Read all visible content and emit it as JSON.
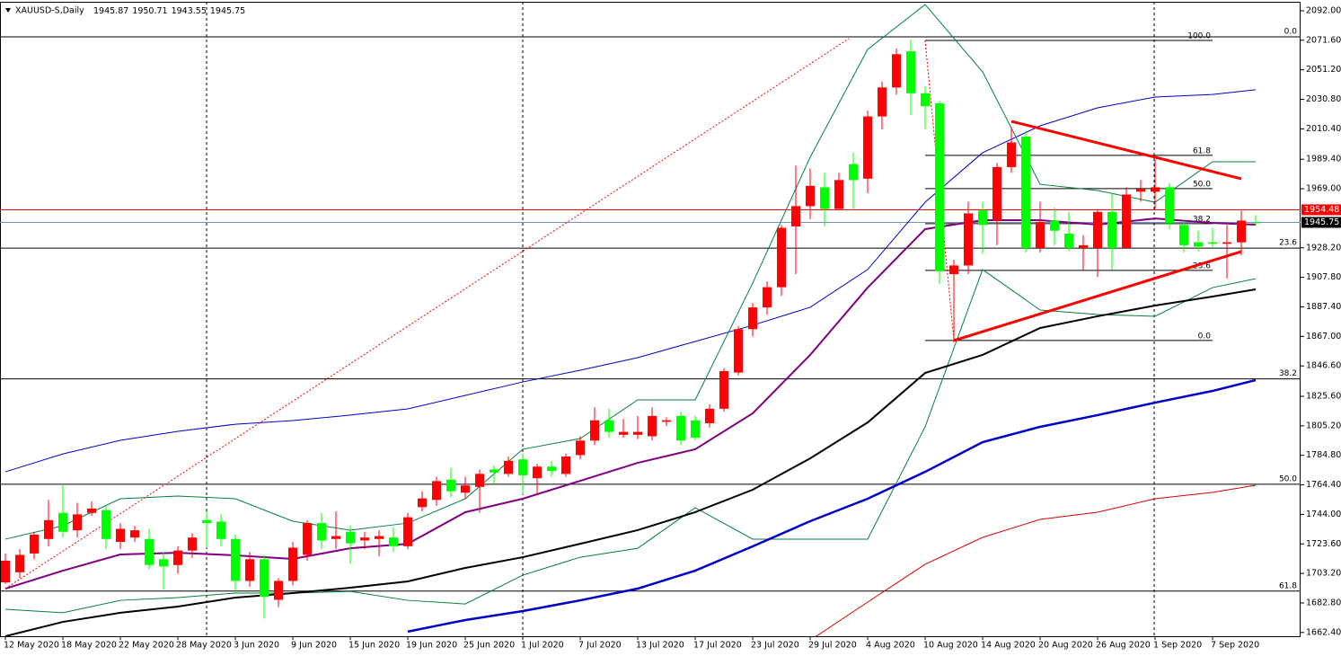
{
  "chart_data": {
    "type": "candlestick",
    "title": "XAUUSD-S,Daily",
    "categories": [
      "12 May 2020",
      null,
      null,
      null,
      "18 May 2020",
      null,
      null,
      null,
      "22 May 2020",
      null,
      null,
      null,
      "28 May 2020",
      null,
      null,
      null,
      "3 Jun 2020",
      null,
      null,
      null,
      "9 Jun 2020",
      null,
      null,
      null,
      "15 Jun 2020",
      null,
      null,
      null,
      "19 Jun 2020",
      null,
      null,
      null,
      "25 Jun 2020",
      null,
      null,
      null,
      "1 Jul 2020",
      null,
      null,
      null,
      "7 Jul 2020",
      null,
      null,
      null,
      "13 Jul 2020",
      null,
      null,
      null,
      "17 Jul 2020",
      null,
      null,
      null,
      "23 Jul 2020",
      null,
      null,
      null,
      "29 Jul 2020",
      null,
      null,
      null,
      "4 Aug 2020",
      null,
      null,
      null,
      "10 Aug 2020",
      null,
      null,
      null,
      "14 Aug 2020",
      null,
      null,
      null,
      "20 Aug 2020",
      null,
      null,
      null,
      "26 Aug 2020",
      null,
      null,
      null,
      "1 Sep 2020",
      null,
      null,
      null,
      "7 Sep 2020",
      null,
      null,
      null
    ],
    "open": [
      1697,
      1704,
      1717,
      1727,
      1745,
      1733,
      1745,
      1747,
      1725,
      1728,
      1727,
      1713,
      1709,
      1719,
      1740,
      1739,
      1727,
      1698,
      1713,
      1685,
      1698,
      1716,
      1738,
      1727,
      1732,
      1726,
      1727,
      1728,
      1722,
      1749,
      1754,
      1768,
      1759,
      1763,
      1775,
      1772,
      1782,
      1769,
      1777,
      1772,
      1785,
      1795,
      1809,
      1799,
      1799,
      1798,
      1808,
      1812,
      1809,
      1807,
      1817,
      1842,
      1872,
      1887,
      1901,
      1943,
      1957,
      1970,
      1955,
      1986,
      1976,
      2019,
      2039,
      2064,
      2035,
      2028,
      1910,
      1916,
      1954,
      1947,
      1984,
      2005,
      1928,
      1947,
      1938,
      1928,
      1928,
      1953,
      1928,
      1967,
      1967,
      1970,
      1944,
      1932,
      1932,
      1931,
      1932,
      1945.87
    ],
    "high": [
      1717,
      1720,
      1732,
      1754,
      1765,
      1752,
      1753,
      1750,
      1738,
      1736,
      1734,
      1718,
      1722,
      1731,
      1746,
      1744,
      1730,
      1718,
      1716,
      1700,
      1725,
      1740,
      1745,
      1746,
      1736,
      1732,
      1733,
      1735,
      1745,
      1760,
      1770,
      1776,
      1770,
      1775,
      1778,
      1784,
      1786,
      1779,
      1781,
      1786,
      1798,
      1818,
      1817,
      1810,
      1812,
      1818,
      1811,
      1815,
      1812,
      1820,
      1845,
      1874,
      1890,
      1905,
      1944,
      1985,
      1983,
      1980,
      1980,
      1994,
      2023,
      2043,
      2066,
      2072,
      2040,
      2030,
      1920,
      1960,
      1960,
      1987,
      2012,
      2009,
      1960,
      1956,
      1953,
      1937,
      1955,
      1966,
      1970,
      1975,
      1989,
      1973,
      1947,
      1940,
      1942,
      1944,
      1954,
      1950.71
    ],
    "low": [
      1696,
      1700,
      1713,
      1722,
      1728,
      1728,
      1743,
      1720,
      1720,
      1725,
      1706,
      1692,
      1703,
      1714,
      1721,
      1722,
      1690,
      1694,
      1672,
      1680,
      1695,
      1712,
      1720,
      1720,
      1710,
      1720,
      1715,
      1718,
      1720,
      1746,
      1750,
      1756,
      1755,
      1745,
      1765,
      1770,
      1758,
      1758,
      1770,
      1770,
      1782,
      1792,
      1797,
      1797,
      1796,
      1795,
      1805,
      1792,
      1795,
      1804,
      1815,
      1840,
      1867,
      1882,
      1895,
      1910,
      1948,
      1943,
      1955,
      1955,
      1966,
      2010,
      2034,
      2020,
      2010,
      1903,
      1863,
      1910,
      1924,
      1930,
      1980,
      1925,
      1925,
      1930,
      1926,
      1913,
      1908,
      1913,
      1928,
      1960,
      1955,
      1941,
      1925,
      1926,
      1928,
      1907,
      1923,
      1943.55
    ],
    "close": [
      1712,
      1716,
      1730,
      1740,
      1732,
      1744,
      1748,
      1727,
      1734,
      1733,
      1709,
      1708,
      1719,
      1728,
      1738,
      1727,
      1698,
      1713,
      1687,
      1698,
      1721,
      1738,
      1726,
      1729,
      1724,
      1728,
      1729,
      1722,
      1742,
      1755,
      1767,
      1760,
      1764,
      1772,
      1773,
      1781,
      1771,
      1777,
      1774,
      1784,
      1795,
      1809,
      1801,
      1801,
      1801,
      1812,
      1809,
      1795,
      1797,
      1817,
      1843,
      1872,
      1887,
      1901,
      1942,
      1957,
      1971,
      1955,
      1975,
      1975,
      2019,
      2039,
      2062,
      2035,
      2026,
      1912,
      1916,
      1952,
      1944,
      1984,
      2001,
      1928,
      1946,
      1940,
      1928,
      1930,
      1953,
      1928,
      1965,
      1969,
      1970,
      1945,
      1930,
      1929,
      1931,
      1932,
      1947,
      1945.75
    ],
    "up_color": "#ff0000",
    "down_color": "#00ff00",
    "ylim": [
      1659.8,
      2098.2
    ],
    "yticks": [
      {
        "value": 2092,
        "label": "2092.00"
      },
      {
        "value": 2071.6,
        "label": "2071.60"
      },
      {
        "value": 2051.2,
        "label": "2051.20"
      },
      {
        "value": 2030.8,
        "label": "2030.80"
      },
      {
        "value": 2010.4,
        "label": "2010.40"
      },
      {
        "value": 1989.4,
        "label": "1989.40"
      },
      {
        "value": 1969,
        "label": "1969.00"
      },
      {
        "value": 1928.2,
        "label": "1928.20"
      },
      {
        "value": 1907.8,
        "label": "1907.80"
      },
      {
        "value": 1887.4,
        "label": "1887.40"
      },
      {
        "value": 1867,
        "label": "1867.00"
      },
      {
        "value": 1846.6,
        "label": "1846.60"
      },
      {
        "value": 1825.6,
        "label": "1825.60"
      },
      {
        "value": 1805.2,
        "label": "1805.20"
      },
      {
        "value": 1784.8,
        "label": "1784.80"
      },
      {
        "value": 1764.4,
        "label": "1764.40"
      },
      {
        "value": 1744,
        "label": "1744.00"
      },
      {
        "value": 1723.6,
        "label": "1723.60"
      },
      {
        "value": 1703.2,
        "label": "1703.20"
      },
      {
        "value": 1682.8,
        "label": "1682.80"
      },
      {
        "value": 1662.4,
        "label": "1662.40"
      }
    ],
    "price_line": {
      "value": 1954.48,
      "label": "1954.48",
      "color": "#ff0000"
    },
    "bid": {
      "value": 1945.75,
      "label": "1945.75",
      "color": "#6f8fc8"
    },
    "indicators": [
      {
        "color": "#0000c8",
        "width": 1,
        "x": [
          0,
          4,
          8,
          12,
          16,
          20,
          24,
          28,
          32,
          36,
          40,
          44,
          48,
          52,
          56,
          60,
          64,
          68,
          72,
          76,
          80,
          84,
          87
        ],
        "values": [
          1773.4,
          1785.8,
          1795.2,
          1801.4,
          1806.3,
          1808.8,
          1812.6,
          1816.9,
          1826.2,
          1835.5,
          1843.6,
          1852.3,
          1863.5,
          1874.7,
          1887.1,
          1913.2,
          1959.7,
          1993.9,
          2012.5,
          2024.9,
          2032.4,
          2034.2,
          2037.4
        ]
      },
      {
        "color": "#008040",
        "width": 1,
        "x": [
          0,
          4,
          8,
          12,
          16,
          20,
          24,
          28,
          32,
          36,
          40,
          44,
          48,
          52,
          56,
          60,
          64,
          68,
          72,
          76,
          80,
          84,
          87
        ],
        "values": [
          1726.9,
          1736.2,
          1754.8,
          1756.7,
          1754.8,
          1739.3,
          1733.1,
          1738,
          1754.8,
          1789,
          1796.4,
          1823.1,
          1823.1,
          1903.8,
          1990.8,
          2065.3,
          2096.3,
          2049.8,
          1972.1,
          1967.8,
          1959.7,
          1987.7,
          1987.7
        ]
      },
      {
        "color": "#008040",
        "width": 1,
        "x": [
          0,
          4,
          8,
          12,
          16,
          20,
          24,
          28,
          32,
          36,
          40,
          44,
          48,
          52,
          56,
          60,
          64,
          68,
          72,
          76,
          80,
          84,
          87
        ],
        "values": [
          1678.4,
          1676,
          1684.6,
          1686.5,
          1689.6,
          1689.6,
          1690.8,
          1684.6,
          1682.1,
          1702,
          1714.4,
          1720.6,
          1748.6,
          1726.9,
          1726.9,
          1726.9,
          1804.5,
          1913.2,
          1885.2,
          1882.1,
          1880.9,
          1900.7,
          1906.9
        ]
      },
      {
        "color": "#800080",
        "width": 2,
        "x": [
          0,
          4,
          8,
          12,
          16,
          20,
          24,
          28,
          32,
          36,
          40,
          44,
          48,
          52,
          56,
          60,
          64,
          68,
          72,
          76,
          80,
          84,
          87
        ],
        "values": [
          1692.7,
          1705.1,
          1716.3,
          1717.5,
          1715.7,
          1713.2,
          1720.6,
          1723.7,
          1745.5,
          1754.8,
          1767.2,
          1779.6,
          1789,
          1813.8,
          1854.2,
          1900.7,
          1941.1,
          1947.3,
          1947.3,
          1944.2,
          1948.5,
          1945.4,
          1944.2
        ]
      },
      {
        "color": "#000000",
        "width": 2,
        "x": [
          0,
          4,
          8,
          12,
          16,
          20,
          24,
          28,
          32,
          36,
          40,
          44,
          48,
          52,
          56,
          60,
          64,
          68,
          72,
          76,
          80,
          84,
          87
        ],
        "values": [
          1659.8,
          1669.7,
          1676,
          1680.3,
          1686.5,
          1689.6,
          1693.3,
          1697.7,
          1707,
          1714.4,
          1723.7,
          1733.1,
          1745.5,
          1761,
          1782.7,
          1807.5,
          1841.7,
          1854.2,
          1872.8,
          1880.9,
          1888.3,
          1894.5,
          1899.5
        ]
      },
      {
        "color": "#0000c8",
        "width": 2.5,
        "x": [
          0,
          4,
          8,
          12,
          16,
          20,
          24,
          28,
          32,
          36,
          40,
          44,
          48,
          52,
          56,
          60,
          64,
          68,
          72,
          76,
          80,
          84,
          87
        ],
        "values": [
          null,
          null,
          null,
          null,
          null,
          null,
          null,
          1663,
          1671,
          1677.2,
          1684.6,
          1692.7,
          1705.1,
          1721.9,
          1739.3,
          1754.8,
          1773.4,
          1793.9,
          1804.5,
          1812.6,
          1821.2,
          1829.3,
          1836.8
        ]
      },
      {
        "color": "#dd0000",
        "width": 1,
        "x": [
          0,
          4,
          8,
          12,
          16,
          20,
          24,
          28,
          32,
          36,
          40,
          44,
          48,
          52,
          56,
          60,
          64,
          68,
          72,
          76,
          80,
          84,
          87
        ],
        "values": [
          null,
          null,
          null,
          null,
          null,
          null,
          null,
          null,
          null,
          null,
          null,
          null,
          null,
          null,
          1657,
          1683.4,
          1709.5,
          1728.1,
          1740.5,
          1745.5,
          1754.8,
          1759.2,
          1764.1
        ]
      }
    ],
    "fib_levels": [
      {
        "label": "0.0",
        "value": 2074
      },
      {
        "label": "23.6",
        "value": 1928
      },
      {
        "label": "38.2",
        "value": 1837.6
      },
      {
        "label": "50.0",
        "value": 1764.8
      },
      {
        "label": "61.8",
        "value": 1691
      }
    ],
    "fib_retracement": {
      "start": 64,
      "end": 84,
      "levels": [
        {
          "label": "100.0",
          "value": 2071.5
        },
        {
          "label": "61.8",
          "value": 1992.1
        },
        {
          "label": "50.0",
          "value": 1969.1
        },
        {
          "label": "38.2",
          "value": 1944.9
        },
        {
          "label": "23.6",
          "value": 1912.6
        },
        {
          "label": "0.0",
          "value": 1864.2
        }
      ]
    },
    "trendlines": [
      {
        "points": [
          [
            70,
            2015.6
          ],
          [
            86,
            1975.9
          ]
        ],
        "color": "#ff0000",
        "width": 3,
        "dashed": false
      },
      {
        "points": [
          [
            66,
            1864.1
          ],
          [
            86,
            1925.6
          ]
        ],
        "color": "#ff0000",
        "width": 3,
        "dashed": false
      },
      {
        "points": [
          [
            0,
            1692.7
          ],
          [
            58.7,
            2072.8
          ]
        ],
        "color": "#ff0000",
        "width": 1,
        "dashed": true
      },
      {
        "points": [
          [
            64,
            2071.5
          ],
          [
            66,
            1864.2
          ]
        ],
        "color": "#ff0000",
        "width": 1,
        "dashed": true
      }
    ]
  }
}
